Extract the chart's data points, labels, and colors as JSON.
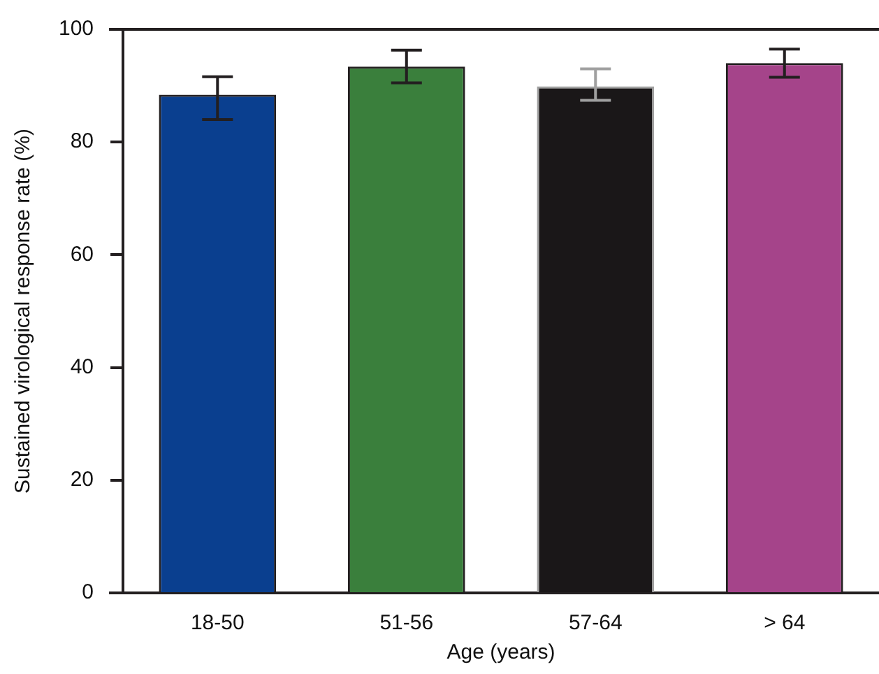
{
  "chart_data": {
    "type": "bar",
    "xlabel": "Age (years)",
    "ylabel": "Sustained virological response rate (%)",
    "categories": [
      "18-50",
      "51-56",
      "57-64",
      "> 64"
    ],
    "values": [
      88.4,
      93.4,
      89.9,
      94.0
    ],
    "colors": [
      "#0a3f8f",
      "#3a7f3c",
      "#1a1718",
      "#a5448a"
    ],
    "errors": [
      [
        84.0,
        91.6
      ],
      [
        90.5,
        96.3
      ],
      [
        87.4,
        93.0
      ],
      [
        91.5,
        96.5
      ]
    ],
    "ylim": [
      0,
      100
    ],
    "yticks": [
      0,
      20,
      40,
      60,
      80,
      100
    ],
    "grid": false,
    "legend": false
  }
}
